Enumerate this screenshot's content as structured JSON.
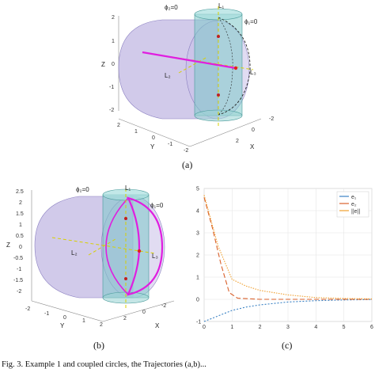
{
  "panel_a": {
    "caption": "(a)",
    "labels": {
      "phi2": "ϕ₂=0",
      "phi1": "ϕ₁=0",
      "L1": "L₁",
      "L2": "L₂",
      "L3": "L₃"
    },
    "axes": {
      "z": "Z",
      "y": "Y",
      "x": "X"
    },
    "z_ticks": [
      "2",
      "1",
      "0",
      "-1",
      "-2"
    ],
    "y_ticks": [
      "2",
      "1",
      "0",
      "-1",
      "-2"
    ],
    "x_ticks": [
      "2",
      "0",
      "-2"
    ]
  },
  "panel_b": {
    "caption": "(b)",
    "labels": {
      "phi2": "ϕ₂=0",
      "phi1": "ϕ₁=0",
      "L1": "L₁",
      "L2": "L₂",
      "L3": "L₃"
    },
    "axes": {
      "z": "Z",
      "y": "Y",
      "x": "X"
    },
    "z_ticks": [
      "2.5",
      "2",
      "1.5",
      "1",
      "0.5",
      "0",
      "-0.5",
      "-1",
      "-1.5",
      "-2"
    ],
    "y_ticks": [
      "-2",
      "-1",
      "0",
      "1",
      "2"
    ],
    "x_ticks": [
      "2",
      "0",
      "-2"
    ]
  },
  "panel_c": {
    "caption": "(c)",
    "chart_data": {
      "type": "line",
      "xlim": [
        0,
        6
      ],
      "ylim": [
        -1,
        5
      ],
      "x_ticks": [
        "0",
        "1",
        "2",
        "3",
        "4",
        "5",
        "6"
      ],
      "y_ticks": [
        "5",
        "4",
        "3",
        "2",
        "1",
        "0",
        "-1"
      ],
      "legend": "top-right",
      "grid": true,
      "series": [
        {
          "name": "e₁",
          "color": "#3b82c4",
          "x": [
            0,
            0.5,
            1,
            1.5,
            2,
            3,
            4,
            5,
            6
          ],
          "y": [
            -1.0,
            -0.75,
            -0.5,
            -0.35,
            -0.25,
            -0.12,
            -0.06,
            -0.03,
            -0.01
          ]
        },
        {
          "name": "e₂",
          "color": "#d9602b",
          "x": [
            0,
            0.3,
            0.6,
            0.9,
            1.2,
            2,
            3,
            4,
            5,
            6
          ],
          "y": [
            4.6,
            3.2,
            1.6,
            0.3,
            0.05,
            0.0,
            0.0,
            0.0,
            0.0,
            0.0
          ]
        },
        {
          "name": "||e||",
          "color": "#f0a030",
          "x": [
            0,
            0.5,
            1,
            1.5,
            2,
            3,
            4,
            5,
            6
          ],
          "y": [
            4.7,
            2.4,
            0.9,
            0.6,
            0.4,
            0.2,
            0.08,
            0.04,
            0.02
          ]
        }
      ]
    }
  },
  "footer": {
    "text": "Fig. 3.   Example 1 and coupled circles, the Trajectories (a,b)..."
  }
}
